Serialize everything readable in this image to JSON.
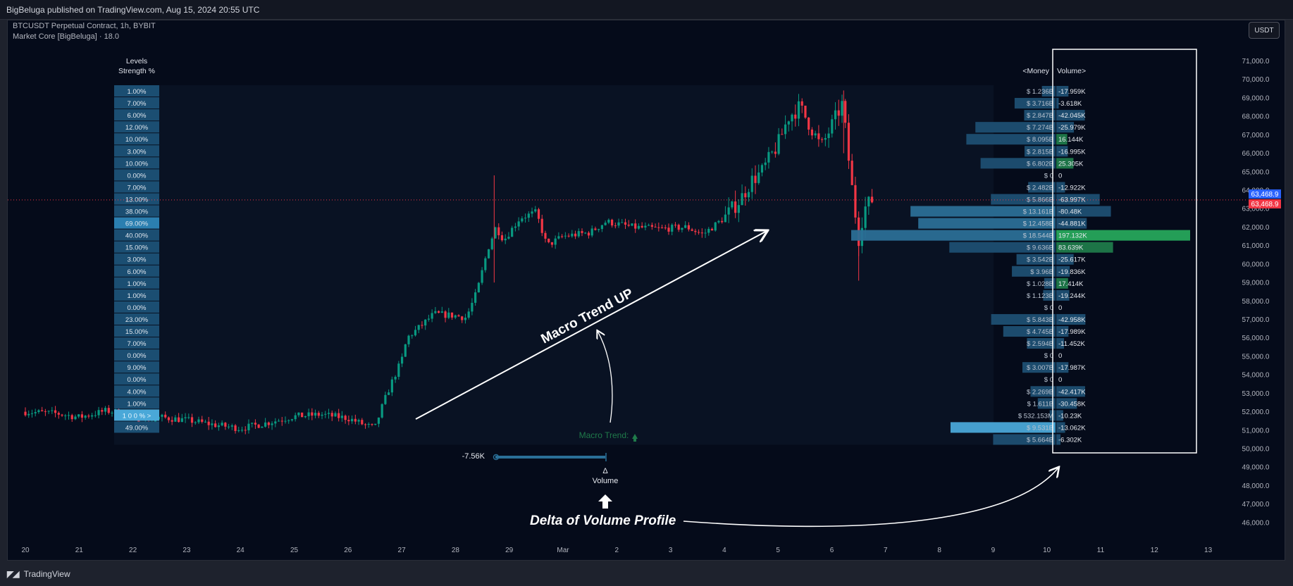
{
  "header": {
    "published": "BigBeluga published on TradingView.com, Aug 15, 2024 20:55 UTC",
    "symbol": "BTCUSDT Perpetual Contract, 1h, BYBIT",
    "indicator": "Market Core [BigBeluga] · 18.0",
    "currency_button": "USDT"
  },
  "footer": {
    "brand": "TradingView",
    "logo": "tv-logo-icon"
  },
  "levels_table": {
    "header_line1": "Levels",
    "header_line2": "Strength %",
    "values": [
      "1.00%",
      "7.00%",
      "6.00%",
      "12.00%",
      "10.00%",
      "3.00%",
      "10.00%",
      "0.00%",
      "7.00%",
      "13.00%",
      "38.00%",
      "69.00%",
      "40.00%",
      "15.00%",
      "3.00%",
      "6.00%",
      "1.00%",
      "1.00%",
      "0.00%",
      "23.00%",
      "15.00%",
      "7.00%",
      "0.00%",
      "9.00%",
      "0.00%",
      "4.00%",
      "1.00%",
      "1 0 0 % >",
      "49.00%"
    ]
  },
  "profile": {
    "header_money": "<Money",
    "header_volume": "Volume>",
    "money": [
      "$ 1.236B",
      "$ 3.716B",
      "$ 2.847B",
      "$ 7.274B",
      "$ 8.095B",
      "$ 2.815B",
      "$ 6.802B",
      "$ 0",
      "$ 2.482B",
      "$ 5.866B",
      "$ 13.161B",
      "$ 12.458B",
      "$ 18.544B",
      "$ 9.636B",
      "$ 3.542B",
      "$ 3.96B",
      "$ 1.028B",
      "$ 1.123B",
      "$ 0",
      "$ 5.843B",
      "$ 4.745B",
      "$ 2.594B",
      "$ 0",
      "$ 3.007B",
      "$ 0",
      "$ 2.269B",
      "$ 1.611B",
      "$ 532.153M",
      "$ 9.531B",
      "$ 5.664B"
    ],
    "money_values_b": [
      1.236,
      3.716,
      2.847,
      7.274,
      8.095,
      2.815,
      6.802,
      0,
      2.482,
      5.866,
      13.161,
      12.458,
      18.544,
      9.636,
      3.542,
      3.96,
      1.028,
      1.123,
      0,
      5.843,
      4.745,
      2.594,
      0,
      3.007,
      0,
      2.269,
      1.611,
      0.532,
      9.531,
      5.664
    ],
    "volume": [
      "-17.959K",
      "-3.618K",
      "-42.045K",
      "-25.979K",
      "16.144K",
      "-16.995K",
      "25.305K",
      "0",
      "-12.922K",
      "-63.997K",
      "-80.48K",
      "-44.881K",
      "197.132K",
      "83.639K",
      "-25.617K",
      "-19.836K",
      "17.414K",
      "-19.244K",
      "0",
      "-42.958K",
      "-17.989K",
      "-11.452K",
      "0",
      "-17.987K",
      "0",
      "-42.417K",
      "-30.458K",
      "-10.23K",
      "-13.062K",
      "-6.302K"
    ],
    "volume_values_k": [
      -17.959,
      -3.618,
      -42.045,
      -25.979,
      16.144,
      -16.995,
      25.305,
      0,
      -12.922,
      -63.997,
      -80.48,
      -44.881,
      197.132,
      83.639,
      -25.617,
      -19.836,
      17.414,
      -19.244,
      0,
      -42.958,
      -17.989,
      -11.452,
      0,
      -17.987,
      0,
      -42.417,
      -30.458,
      -10.23,
      -13.062,
      -6.302
    ]
  },
  "delta": {
    "value": "-7.56K",
    "value_num": -7.56,
    "label_top": "Δ",
    "label_bottom": "Volume"
  },
  "annotations": {
    "macro_trend_up": "Macro Trend UP",
    "macro_trend": "Macro Trend:",
    "delta_of_volume_profile": "Delta of Volume Profile"
  },
  "colors": {
    "background": "#050b1a",
    "up_candle": "#089981",
    "down_candle": "#f23645",
    "level_bar": "#2a6f97",
    "level_highlight": "#4aa8d8",
    "positive_volume": "#26a65b",
    "price_blue": "#2962ff",
    "price_red": "#f23645"
  },
  "chart_data": {
    "type": "candlestick",
    "symbol": "BTCUSDT",
    "timeframe": "1h",
    "x_ticks": [
      "20",
      "21",
      "22",
      "23",
      "24",
      "25",
      "26",
      "27",
      "28",
      "29",
      "Mar",
      "2",
      "3",
      "4",
      "5",
      "6",
      "7",
      "8",
      "9",
      "10",
      "11",
      "12",
      "13"
    ],
    "y_ticks": [
      "71,000.0",
      "70,000.0",
      "69,000.0",
      "68,000.0",
      "67,000.0",
      "66,000.0",
      "65,000.0",
      "64,000.0",
      "63,000.0",
      "62,000.0",
      "61,000.0",
      "60,000.0",
      "59,000.0",
      "58,000.0",
      "57,000.0",
      "56,000.0",
      "55,000.0",
      "54,000.0",
      "53,000.0",
      "52,000.0",
      "51,000.0",
      "50,000.0",
      "49,000.0",
      "48,000.0",
      "47,000.0",
      "46,000.0"
    ],
    "ylim": [
      45500,
      71400
    ],
    "last_price": "63,468.9",
    "last_price_num": 63468.9,
    "price_path": [
      [
        0,
        52000
      ],
      [
        0.6,
        51900
      ],
      [
        1.0,
        51700
      ],
      [
        1.5,
        52050
      ],
      [
        1.8,
        51950
      ],
      [
        2.2,
        51300
      ],
      [
        2.5,
        51700
      ],
      [
        3.0,
        51550
      ],
      [
        3.5,
        51300
      ],
      [
        4.0,
        51100
      ],
      [
        4.5,
        51400
      ],
      [
        5.0,
        51750
      ],
      [
        5.5,
        51850
      ],
      [
        6.0,
        51650
      ],
      [
        6.3,
        51300
      ],
      [
        6.5,
        51100
      ],
      [
        6.65,
        52400
      ],
      [
        6.8,
        53500
      ],
      [
        7.0,
        54800
      ],
      [
        7.1,
        56000
      ],
      [
        7.3,
        56500
      ],
      [
        7.6,
        57300
      ],
      [
        8.0,
        57200
      ],
      [
        8.2,
        57100
      ],
      [
        8.4,
        58500
      ],
      [
        8.6,
        60800
      ],
      [
        8.75,
        62000
      ],
      [
        8.9,
        61300
      ],
      [
        9.2,
        62500
      ],
      [
        9.5,
        62800
      ],
      [
        9.7,
        61000
      ],
      [
        10.0,
        61500
      ],
      [
        10.5,
        61700
      ],
      [
        10.8,
        62300
      ],
      [
        11.3,
        62000
      ],
      [
        11.8,
        61900
      ],
      [
        12.3,
        62000
      ],
      [
        12.6,
        61600
      ],
      [
        13.0,
        62500
      ],
      [
        13.3,
        63500
      ],
      [
        13.5,
        64500
      ],
      [
        13.7,
        65000
      ],
      [
        14.0,
        66500
      ],
      [
        14.2,
        68000
      ],
      [
        14.4,
        68500
      ],
      [
        14.6,
        67500
      ],
      [
        14.8,
        66300
      ],
      [
        15.0,
        67500
      ],
      [
        15.2,
        68700
      ],
      [
        15.3,
        66000
      ],
      [
        15.4,
        63500
      ],
      [
        15.5,
        61400
      ],
      [
        15.6,
        63000
      ],
      [
        15.75,
        63469
      ]
    ]
  }
}
